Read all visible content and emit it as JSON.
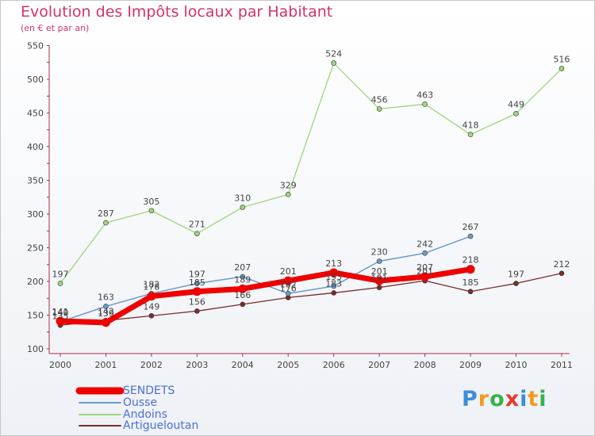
{
  "chart_data": {
    "type": "line",
    "title": "Evolution des Impôts locaux par Habitant",
    "subtitle": "(en € et par an)",
    "xlabel": "",
    "ylabel": "",
    "x": [
      "2000",
      "2001",
      "2002",
      "2003",
      "2004",
      "2005",
      "2006",
      "2007",
      "2008",
      "2009",
      "2010",
      "2011"
    ],
    "ylim": [
      100,
      550
    ],
    "yticks": [
      "100",
      "150",
      "200",
      "250",
      "300",
      "350",
      "400",
      "450",
      "500",
      "550"
    ],
    "series": [
      {
        "name": "SENDETS",
        "color": "#ee0000",
        "values": [
          141,
          139,
          178,
          185,
          189,
          201,
          213,
          201,
          207,
          218,
          null,
          null
        ],
        "labels": [
          "141",
          "139",
          "178",
          "185",
          "189",
          "201",
          "213",
          "201",
          "207",
          "218",
          "",
          ""
        ]
      },
      {
        "name": "Ousse",
        "color": "#6b9ccd",
        "values": [
          140,
          163,
          182,
          197,
          207,
          182,
          193,
          230,
          242,
          267,
          null,
          null
        ],
        "labels": [
          "140",
          "163",
          "182",
          "197",
          "207",
          "182",
          "193",
          "230",
          "242",
          "267",
          "",
          ""
        ]
      },
      {
        "name": "Andoins",
        "color": "#9fd67c",
        "values": [
          197,
          287,
          305,
          271,
          310,
          329,
          524,
          456,
          463,
          418,
          449,
          516
        ],
        "labels": [
          "197",
          "287",
          "305",
          "271",
          "310",
          "329",
          "524",
          "456",
          "463",
          "418",
          "449",
          "516"
        ]
      },
      {
        "name": "Artigueloutan",
        "color": "#7a2c2c",
        "values": [
          135,
          142,
          149,
          156,
          166,
          176,
          183,
          191,
          201,
          185,
          197,
          212
        ],
        "labels": [
          "135",
          "142",
          "149",
          "156",
          "166",
          "176",
          "183",
          "191",
          "201",
          "185",
          "197",
          "212"
        ]
      }
    ]
  },
  "brand": {
    "name": "Proxiti"
  }
}
